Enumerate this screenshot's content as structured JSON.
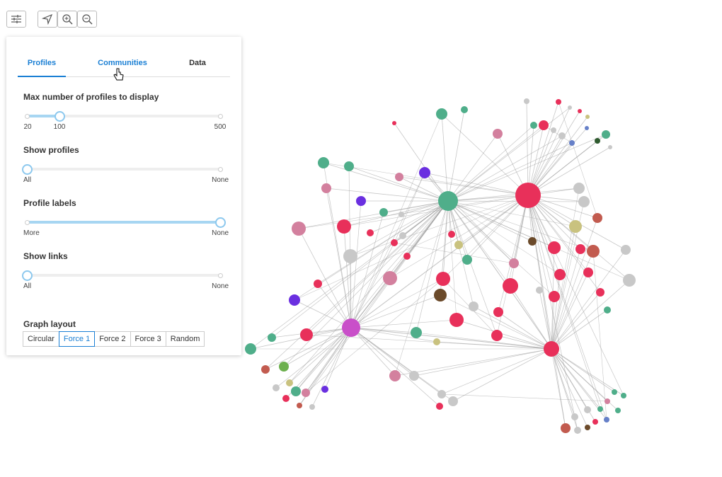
{
  "tabs": [
    "Profiles",
    "Communities",
    "Data"
  ],
  "active_tab": 0,
  "sliders": [
    {
      "label": "Max number of profiles to display",
      "ticks": [
        "20",
        "100",
        "500"
      ]
    },
    {
      "label": "Show profiles",
      "ticks": [
        "All",
        "None"
      ]
    },
    {
      "label": "Profile labels",
      "ticks": [
        "More",
        "None"
      ]
    },
    {
      "label": "Show links",
      "ticks": [
        "All",
        "None"
      ]
    }
  ],
  "graph_layout": {
    "label": "Graph layout",
    "options": [
      "Circular",
      "Force 1",
      "Force 2",
      "Force 3",
      "Random"
    ],
    "selected": 1
  }
}
